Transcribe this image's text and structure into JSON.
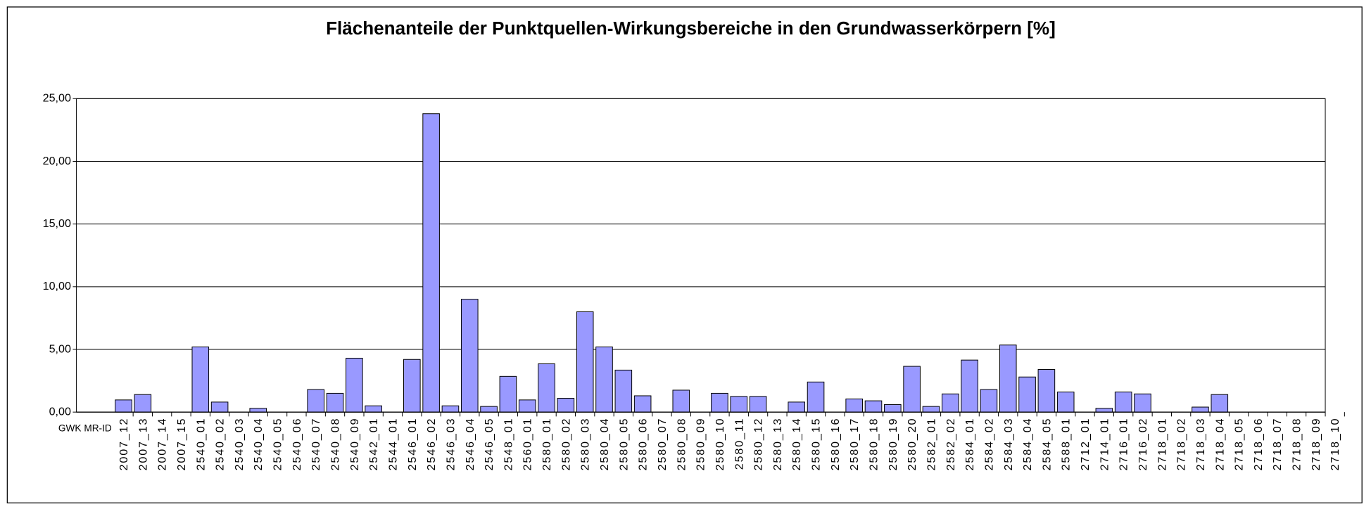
{
  "chart_data": {
    "type": "bar",
    "title": "Flächenanteile der Punktquellen-Wirkungsbereiche in den Grundwasserkörpern [%]",
    "x_label": "GWK MR-ID",
    "categories": [
      "2007_12",
      "2007_13",
      "2007_14",
      "2007_15",
      "2540_01",
      "2540_02",
      "2540_03",
      "2540_04",
      "2540_05",
      "2540_06",
      "2540_07",
      "2540_08",
      "2540_09",
      "2542_01",
      "2544_01",
      "2546_01",
      "2546_02",
      "2546_03",
      "2546_04",
      "2546_05",
      "2548_01",
      "2560_01",
      "2580_01",
      "2580_02",
      "2580_03",
      "2580_04",
      "2580_05",
      "2580_06",
      "2580_07",
      "2580_08",
      "2580_09",
      "2580_10",
      "2580_11",
      "2580_12",
      "2580_13",
      "2580_14",
      "2580_15",
      "2580_16",
      "2580_17",
      "2580_18",
      "2580_19",
      "2580_20",
      "2582_01",
      "2582_02",
      "2584_01",
      "2584_02",
      "2584_03",
      "2584_04",
      "2584_05",
      "2588_01",
      "2712_01",
      "2714_01",
      "2716_01",
      "2716_02",
      "2718_01",
      "2718_02",
      "2718_03",
      "2718_04",
      "2718_05",
      "2718_06",
      "2718_07",
      "2718_08",
      "2718_09",
      "2718_10"
    ],
    "values": [
      0.97,
      1.4,
      0,
      0,
      5.2,
      0.8,
      0,
      0.3,
      0,
      0,
      1.8,
      1.5,
      4.3,
      0.5,
      0,
      4.2,
      23.8,
      0.5,
      9.0,
      0.45,
      2.85,
      0.97,
      3.85,
      1.1,
      8.0,
      5.2,
      3.35,
      1.3,
      0,
      1.75,
      0,
      1.5,
      1.25,
      1.25,
      0,
      0.8,
      2.4,
      0,
      1.05,
      0.9,
      0.6,
      3.65,
      0.45,
      1.45,
      4.15,
      1.8,
      5.35,
      2.8,
      3.4,
      1.6,
      0,
      0.3,
      1.6,
      1.45,
      0,
      0,
      0.4,
      1.4,
      0,
      0,
      0,
      0,
      0,
      0
    ],
    "color": "#9999ff",
    "ylim": [
      0,
      25
    ],
    "yticks": [
      {
        "value": 0,
        "label": "0,00"
      },
      {
        "value": 5,
        "label": "5,00"
      },
      {
        "value": 10,
        "label": "10,00"
      },
      {
        "value": 15,
        "label": "15,00"
      },
      {
        "value": 20,
        "label": "20,00"
      },
      {
        "value": 25,
        "label": "25,00"
      }
    ],
    "grid": true
  }
}
